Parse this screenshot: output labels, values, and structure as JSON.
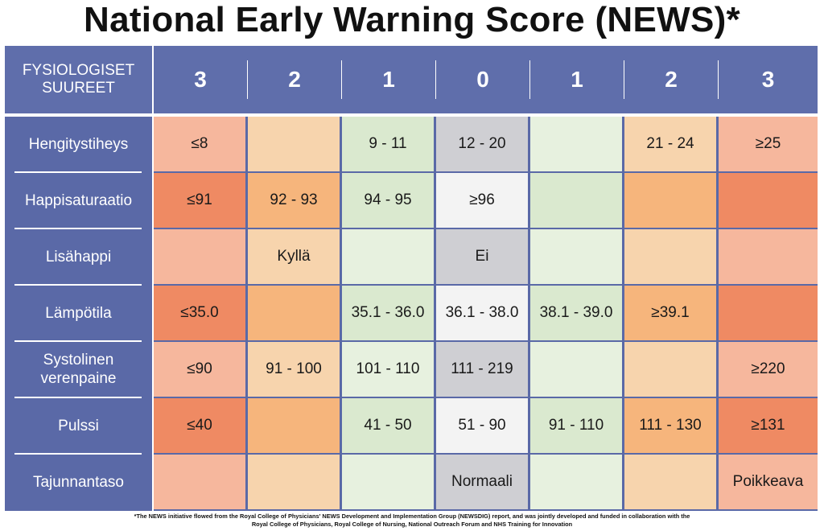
{
  "title": "National Early Warning Score (NEWS)*",
  "header": {
    "label": "FYSIOLOGISET\nSUUREET",
    "scores": [
      "3",
      "2",
      "1",
      "0",
      "1",
      "2",
      "3"
    ]
  },
  "rows": [
    {
      "label": "Hengitystiheys",
      "cells": [
        "≤8",
        "",
        "9 - 11",
        "12 - 20",
        "",
        "21 - 24",
        "≥25"
      ]
    },
    {
      "label": "Happisaturaatio",
      "cells": [
        "≤91",
        "92 - 93",
        "94 - 95",
        "≥96",
        "",
        "",
        ""
      ]
    },
    {
      "label": "Lisähappi",
      "cells": [
        "",
        "Kyllä",
        "",
        "Ei",
        "",
        "",
        ""
      ]
    },
    {
      "label": "Lämpötila",
      "cells": [
        "≤35.0",
        "",
        "35.1 - 36.0",
        "36.1 - 38.0",
        "38.1 - 39.0",
        "≥39.1",
        ""
      ]
    },
    {
      "label": "Systolinen\nverenpaine",
      "cells": [
        "≤90",
        "91 - 100",
        "101 - 110",
        "111 - 219",
        "",
        "",
        "≥220"
      ]
    },
    {
      "label": "Pulssi",
      "cells": [
        "≤40",
        "",
        "41 - 50",
        "51 - 90",
        "91 - 110",
        "111 - 130",
        "≥131"
      ]
    },
    {
      "label": "Tajunnantaso",
      "cells": [
        "",
        "",
        "",
        "Normaali",
        "",
        "",
        "Poikkeava"
      ]
    }
  ],
  "colors": {
    "header_bg": "#5f6eab",
    "dark_orange": "#ef8a63",
    "pink": "#f6b79d",
    "peach": "#f7d4ad",
    "orange": "#f6b57c",
    "green": "#dae9cf",
    "light_green": "#e7f1df",
    "grey": "#cfcfd3",
    "white": "#f3f3f3"
  },
  "footnote": {
    "line1": "*The NEWS initiative flowed from the Royal College of Physicians' NEWS Development and Implementation Group (NEWSDIG) report, and was jointly developed and funded in collaboration with the",
    "line2": "Royal College of Physicians, Royal College of Nursing, National Outreach Forum and NHS Training for Innovation"
  }
}
